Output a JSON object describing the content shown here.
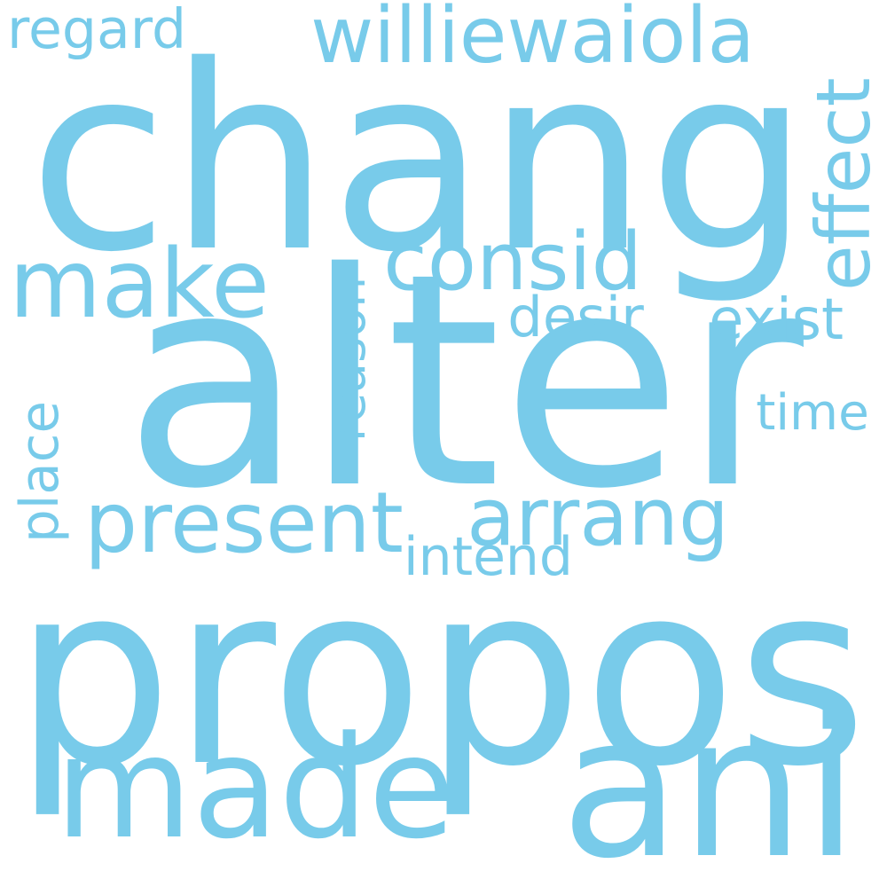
{
  "word_cloud": {
    "text_color": "#78CBEA",
    "background_color": "#FFFFFF",
    "words": [
      {
        "id": "chang",
        "text": "chang",
        "orientation": "horizontal"
      },
      {
        "id": "alter",
        "text": "alter",
        "orientation": "horizontal"
      },
      {
        "id": "propos",
        "text": "propos",
        "orientation": "horizontal"
      },
      {
        "id": "made",
        "text": "made",
        "orientation": "horizontal"
      },
      {
        "id": "ani",
        "text": "ani",
        "orientation": "horizontal"
      },
      {
        "id": "make",
        "text": "make",
        "orientation": "horizontal"
      },
      {
        "id": "williewaiola",
        "text": "williewaiola",
        "orientation": "horizontal"
      },
      {
        "id": "present",
        "text": "present",
        "orientation": "horizontal"
      },
      {
        "id": "arrang",
        "text": "arrang",
        "orientation": "horizontal"
      },
      {
        "id": "consid",
        "text": "consid",
        "orientation": "horizontal"
      },
      {
        "id": "effect",
        "text": "effect",
        "orientation": "vertical"
      },
      {
        "id": "regard",
        "text": "regard",
        "orientation": "horizontal"
      },
      {
        "id": "exist",
        "text": "exist",
        "orientation": "horizontal"
      },
      {
        "id": "desir",
        "text": "desir",
        "orientation": "horizontal"
      },
      {
        "id": "reason",
        "text": "reason",
        "orientation": "vertical"
      },
      {
        "id": "time",
        "text": "time",
        "orientation": "horizontal"
      },
      {
        "id": "place",
        "text": "place",
        "orientation": "vertical"
      },
      {
        "id": "intend",
        "text": "intend",
        "orientation": "horizontal"
      }
    ]
  }
}
